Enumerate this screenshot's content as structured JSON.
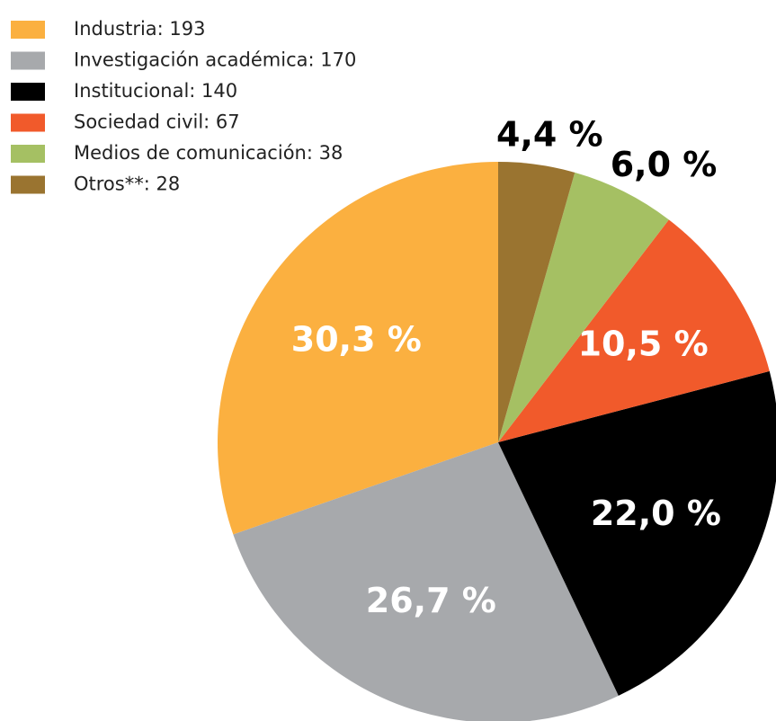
{
  "chart_data": {
    "type": "pie",
    "categories": [
      "Industria: 193",
      "Investigación académica: 170",
      "Institucional: 140",
      "Sociedad civil: 67",
      "Medios de comunicación: 38",
      "Otros**: 28"
    ],
    "values": [
      30.3,
      26.7,
      22.0,
      10.5,
      6.0,
      4.4
    ],
    "value_labels": [
      "30,3 %",
      "26,7 %",
      "22,0 %",
      "10,5 %",
      "6,0 %",
      "4,4 %"
    ],
    "colors": [
      "#fbb040",
      "#a7a9ac",
      "#000000",
      "#f15a2b",
      "#a5c063",
      "#9a7430"
    ],
    "legend": "top-left"
  }
}
